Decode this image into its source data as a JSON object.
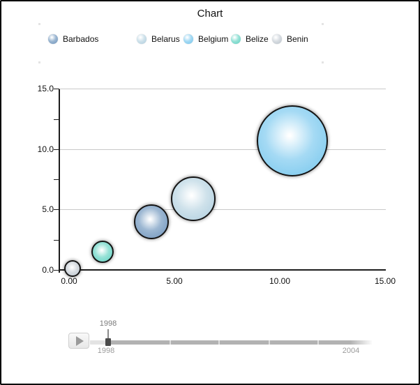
{
  "title": "Chart",
  "legend": {
    "position": "top-left",
    "items": [
      {
        "label": "Barbados",
        "edge": "#6d92bb",
        "mid": "#9cb7d2"
      },
      {
        "label": "Belarus",
        "edge": "#acccdd",
        "mid": "#cfe2eb"
      },
      {
        "label": "Belgium",
        "edge": "#72c5ec",
        "mid": "#a5daf4"
      },
      {
        "label": "Belize",
        "edge": "#5ccfbf",
        "mid": "#97e2d7"
      },
      {
        "label": "Benin",
        "edge": "#b7c0c9",
        "mid": "#d8dde2"
      }
    ]
  },
  "chart_data": {
    "type": "scatter",
    "subtype": "bubble",
    "title": "Chart",
    "xlabel": "",
    "ylabel": "",
    "xlim": [
      0,
      15
    ],
    "ylim": [
      0,
      15
    ],
    "x_tick_labels": [
      "0.00",
      "5.00",
      "10.00",
      "15.00"
    ],
    "y_tick_labels": [
      "0.0",
      "5.0",
      "10.0",
      "15.0"
    ],
    "minor_tick_step": 2.5,
    "grid": "horizontal major gridlines only",
    "legend_position": "top",
    "series": [
      {
        "name": "Barbados",
        "x": 3.9,
        "y": 4.0,
        "radius_px": 25
      },
      {
        "name": "Belarus",
        "x": 5.9,
        "y": 5.9,
        "radius_px": 32
      },
      {
        "name": "Belgium",
        "x": 10.6,
        "y": 10.7,
        "radius_px": 51
      },
      {
        "name": "Belize",
        "x": 1.6,
        "y": 1.5,
        "radius_px": 16
      },
      {
        "name": "Benin",
        "x": 0.15,
        "y": 0.13,
        "radius_px": 12
      }
    ]
  },
  "slider": {
    "current_value": "1998",
    "min_label": "1998",
    "max_label": "2004"
  }
}
